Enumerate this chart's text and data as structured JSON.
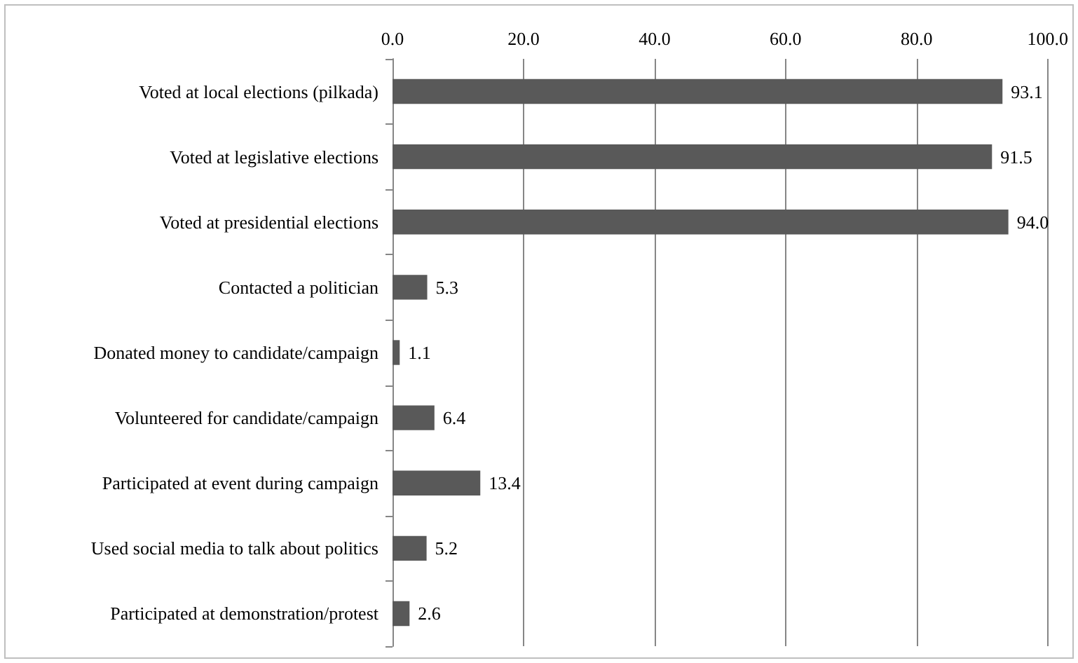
{
  "chart_data": {
    "type": "bar",
    "orientation": "horizontal",
    "categories": [
      "Voted at local elections (pilkada)",
      "Voted at legislative elections",
      "Voted at presidential elections",
      "Contacted a politician",
      "Donated money to candidate/campaign",
      "Volunteered for candidate/campaign",
      "Participated at event during campaign",
      "Used social media to talk about politics",
      "Participated at demonstration/protest"
    ],
    "values": [
      93.1,
      91.5,
      94.0,
      5.3,
      1.1,
      6.4,
      13.4,
      5.2,
      2.6
    ],
    "value_labels": [
      "93.1",
      "91.5",
      "94.0",
      "5.3",
      "1.1",
      "6.4",
      "13.4",
      "5.2",
      "2.6"
    ],
    "color": "#595959",
    "xlim": [
      0,
      100
    ],
    "xticks": [
      {
        "value": 0,
        "label": "0.0"
      },
      {
        "value": 20,
        "label": "20.0"
      },
      {
        "value": 40,
        "label": "40.0"
      },
      {
        "value": 60,
        "label": "60.0"
      },
      {
        "value": 80,
        "label": "80.0"
      },
      {
        "value": 100,
        "label": "100.0"
      }
    ],
    "grid": "x"
  }
}
